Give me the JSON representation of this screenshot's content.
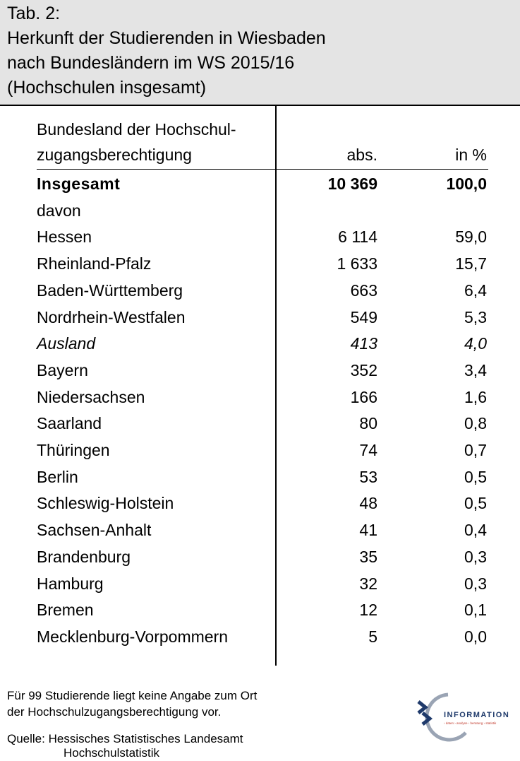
{
  "header": {
    "title": [
      "Tab. 2:",
      "Herkunft der Studierenden in Wiesbaden",
      "nach Bundesländern im WS 2015/16",
      "(Hochschulen insgesamt)"
    ]
  },
  "table": {
    "columns": [
      [
        "Bundesland der Hochschul-",
        "zugangsberechtigung"
      ],
      "abs.",
      "in %"
    ],
    "rows": [
      [
        "Insgesamt",
        "10 369",
        "100,0"
      ],
      [
        "davon",
        "",
        ""
      ],
      [
        "Hessen",
        "6 114",
        "59,0"
      ],
      [
        "Rheinland-Pfalz",
        "1 633",
        "15,7"
      ],
      [
        "Baden-Württemberg",
        "663",
        "6,4"
      ],
      [
        "Nordrhein-Westfalen",
        "549",
        "5,3"
      ],
      [
        "Ausland",
        "413",
        "4,0"
      ],
      [
        "Bayern",
        "352",
        "3,4"
      ],
      [
        "Niedersachsen",
        "166",
        "1,6"
      ],
      [
        "Saarland",
        "80",
        "0,8"
      ],
      [
        "Thüringen",
        "74",
        "0,7"
      ],
      [
        "Berlin",
        "53",
        "0,5"
      ],
      [
        "Schleswig-Holstein",
        "48",
        "0,5"
      ],
      [
        "Sachsen-Anhalt",
        "41",
        "0,4"
      ],
      [
        "Brandenburg",
        "35",
        "0,3"
      ],
      [
        "Hamburg",
        "32",
        "0,3"
      ],
      [
        "Bremen",
        "12",
        "0,1"
      ],
      [
        "Mecklenburg-Vorpommern",
        "5",
        "0,0"
      ]
    ]
  },
  "footer": {
    "note": [
      "Für 99 Studierende liegt keine Angabe zum Ort",
      "der Hochschulzugangsberechtigung vor."
    ],
    "source": [
      "Quelle: Hessisches Statistisches Landesamt",
      "Hochschulstatistik"
    ]
  },
  "logo": {
    "text": "INFORMATION",
    "tagline": "› daten › analyse › beratung › statistik"
  }
}
